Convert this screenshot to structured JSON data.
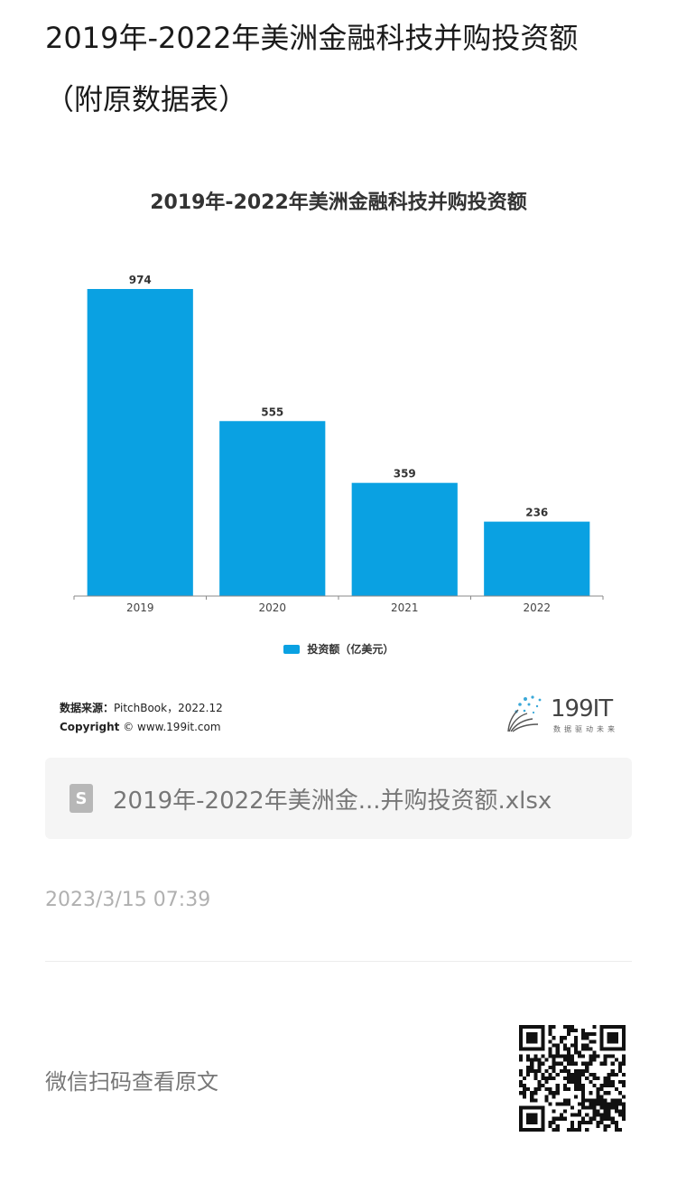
{
  "page": {
    "title_line1": "2019年-2022年美洲金融科技并购投资额",
    "title_line2": "（附原数据表）"
  },
  "chart_data": {
    "type": "bar",
    "title": "2019年-2022年美洲金融科技并购投资额",
    "categories": [
      "2019",
      "2020",
      "2021",
      "2022"
    ],
    "series": [
      {
        "name": "投资额（亿美元）",
        "values": [
          974,
          555,
          359,
          236
        ]
      }
    ],
    "ylim": [
      0,
      1000
    ],
    "grid": false,
    "legend": "bottom-center",
    "bar_color": "#0aa1e2"
  },
  "source": {
    "label": "数据来源：",
    "text": "PitchBook，2022.12",
    "copyright_label": "Copyright",
    "copyright_text": "© www.199it.com"
  },
  "brand": {
    "name": "199IT",
    "tagline": "数据驱动未来"
  },
  "attachment": {
    "icon": "spreadsheet-file-icon",
    "icon_letter": "S",
    "file_name": "2019年-2022年美洲金...并购投资额.xlsx"
  },
  "meta": {
    "timestamp": "2023/3/15 07:39"
  },
  "qr": {
    "caption": "微信扫码查看原文"
  }
}
